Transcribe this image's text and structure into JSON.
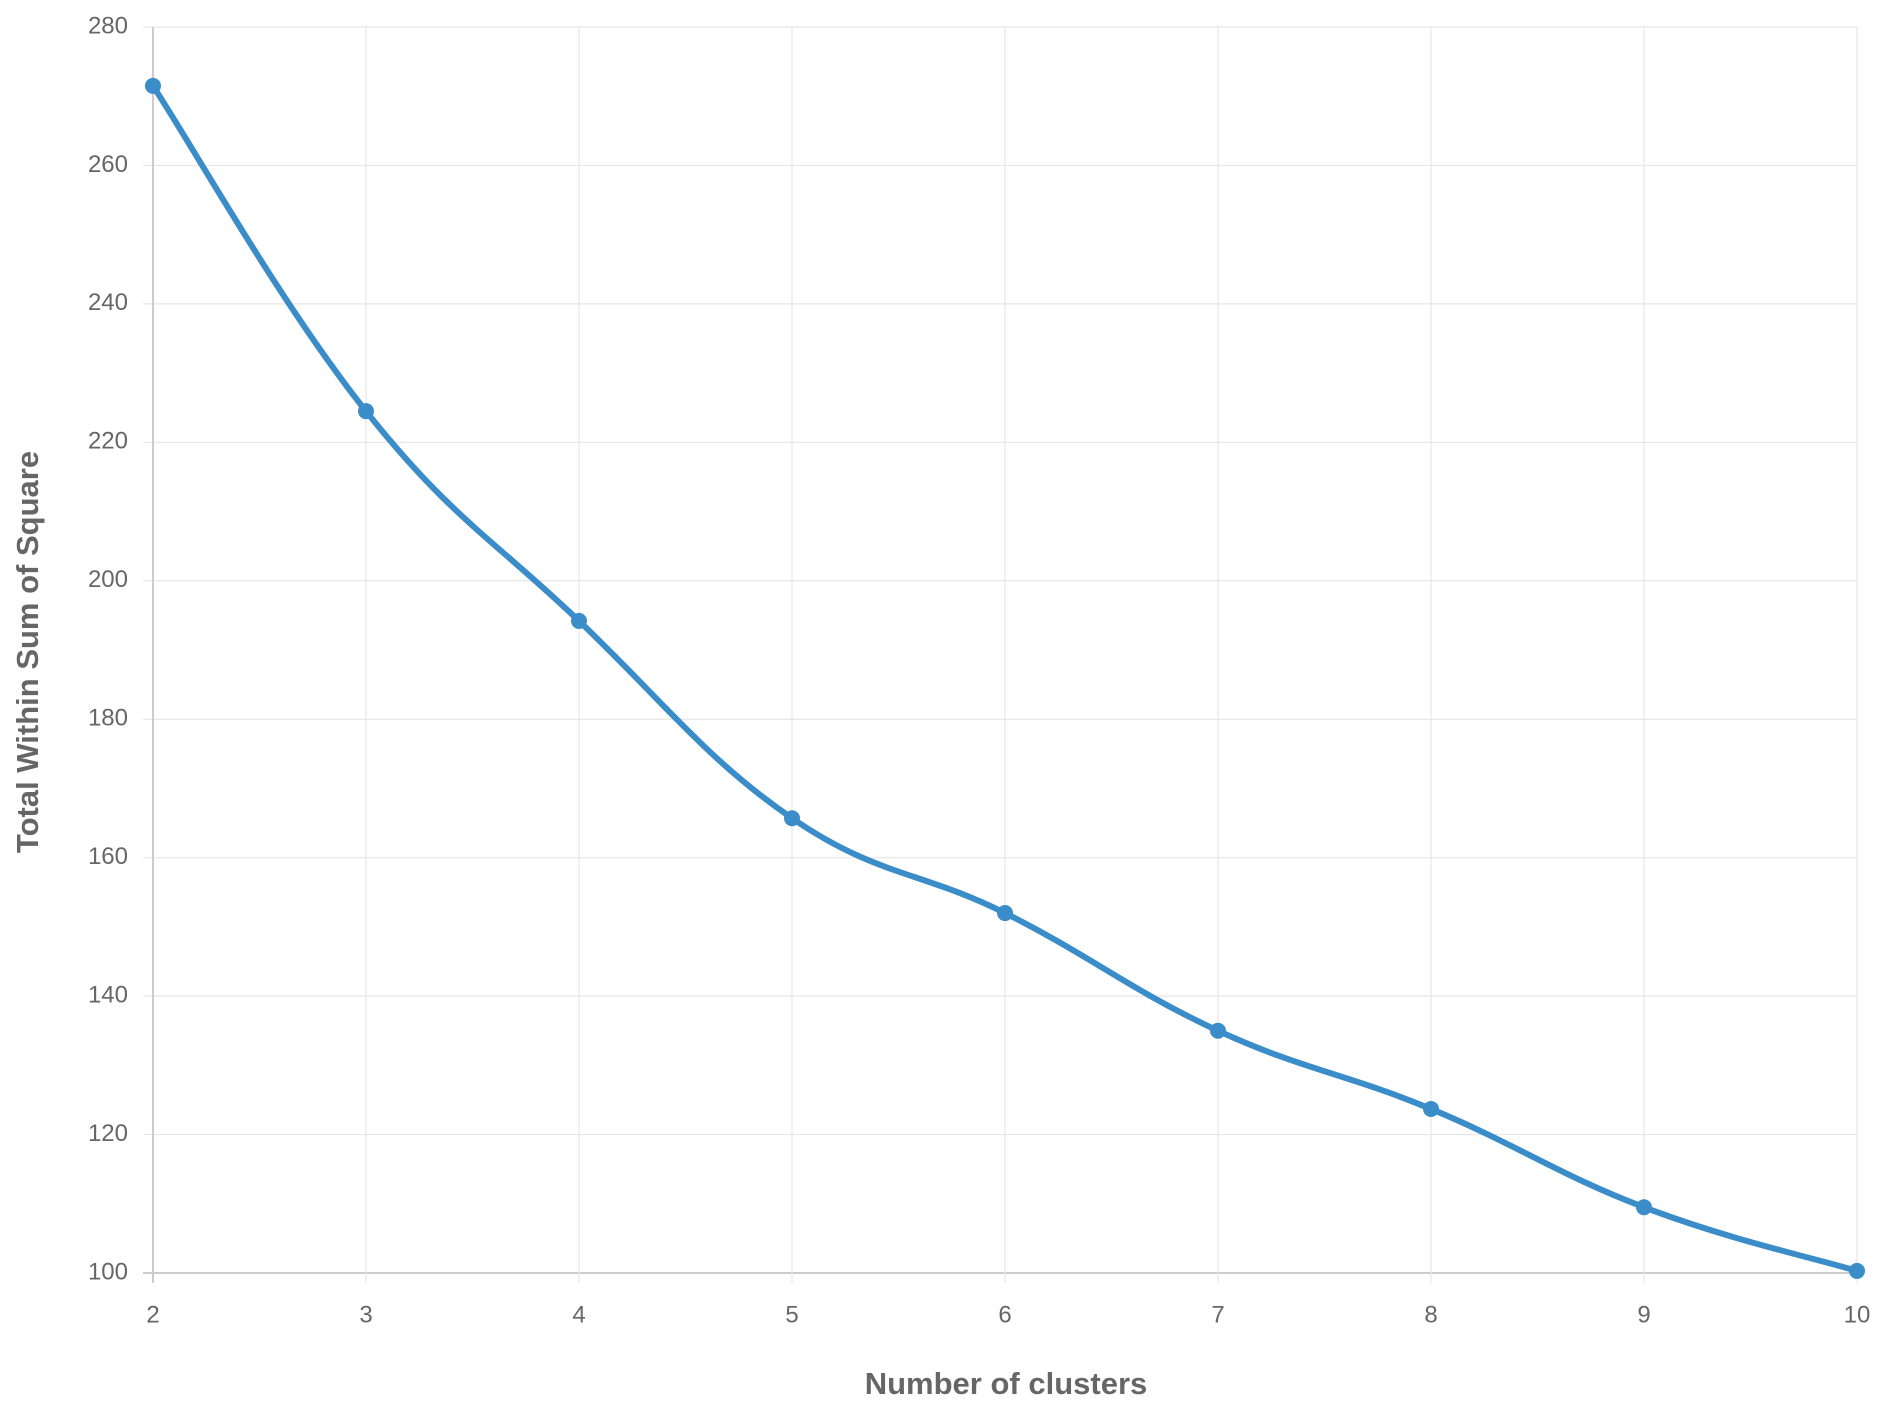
{
  "chart_data": {
    "type": "line",
    "x_label": "Number of clusters",
    "y_label": "Total Within Sum of Square",
    "x": [
      2,
      3,
      4,
      5,
      6,
      7,
      8,
      9,
      10
    ],
    "series": [
      {
        "color": "#3a8dc8",
        "values": [
          271.5,
          224.5,
          194.2,
          165.7,
          152,
          135,
          123.7,
          109.5,
          100.3
        ]
      }
    ],
    "xlim": [
      2,
      10
    ],
    "xticks": [
      2,
      3,
      4,
      5,
      6,
      7,
      8,
      9,
      10
    ],
    "ylim": [
      100,
      280
    ],
    "yticks": [
      100,
      120,
      140,
      160,
      180,
      200,
      220,
      240,
      260,
      280
    ],
    "grid": true
  }
}
